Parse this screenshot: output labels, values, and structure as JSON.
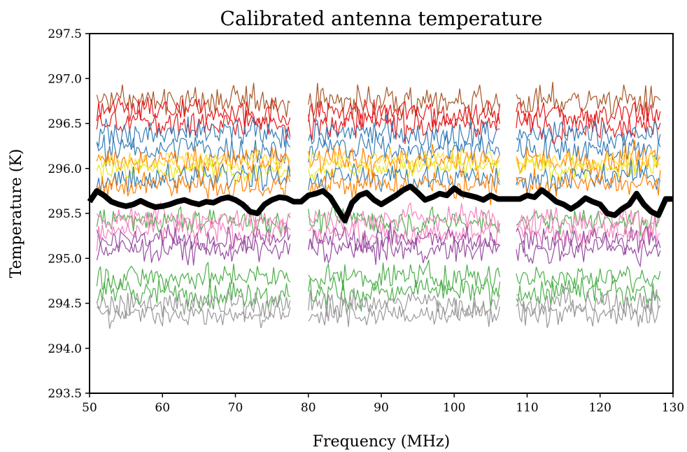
{
  "chart_data": {
    "type": "line",
    "title": "Calibrated antenna temperature",
    "xlabel": "Frequency (MHz)",
    "ylabel": "Temperature (K)",
    "xlim": [
      50,
      130
    ],
    "ylim": [
      293.5,
      297.5
    ],
    "xticks": [
      50,
      60,
      70,
      80,
      90,
      100,
      110,
      120,
      130
    ],
    "yticks": [
      293.5,
      294.0,
      294.5,
      295.0,
      295.5,
      296.0,
      296.5,
      297.0,
      297.5
    ],
    "xtick_labels": [
      "50",
      "60",
      "70",
      "80",
      "90",
      "100",
      "110",
      "120",
      "130"
    ],
    "ytick_labels": [
      "293.5",
      "294.0",
      "294.5",
      "295.0",
      "295.5",
      "296.0",
      "296.5",
      "297.0",
      "297.5"
    ],
    "grid": false,
    "legend": "none",
    "segments": [
      [
        51,
        77.5
      ],
      [
        80,
        106.3
      ],
      [
        108.5,
        128.3
      ]
    ],
    "series": [
      {
        "color": "#a65628",
        "level": 296.75,
        "noise": 0.17
      },
      {
        "color": "#e41a1c",
        "level": 296.62,
        "noise": 0.16
      },
      {
        "color": "#e41a1c",
        "level": 296.5,
        "noise": 0.16
      },
      {
        "color": "#377eb8",
        "level": 296.38,
        "noise": 0.16
      },
      {
        "color": "#377eb8",
        "level": 296.22,
        "noise": 0.16
      },
      {
        "color": "#ff7f00",
        "level": 296.08,
        "noise": 0.16
      },
      {
        "color": "#ffd92f",
        "level": 296.1,
        "noise": 0.12
      },
      {
        "color": "#e6e61a",
        "level": 296.0,
        "noise": 0.12
      },
      {
        "color": "#377eb8",
        "level": 295.9,
        "noise": 0.15
      },
      {
        "color": "#ff7f00",
        "level": 295.82,
        "noise": 0.15
      },
      {
        "color": "#4daf4a",
        "level": 295.42,
        "noise": 0.14
      },
      {
        "color": "#f781bf",
        "level": 295.45,
        "noise": 0.15
      },
      {
        "color": "#f781bf",
        "level": 295.28,
        "noise": 0.15
      },
      {
        "color": "#984ea3",
        "level": 295.22,
        "noise": 0.15
      },
      {
        "color": "#984ea3",
        "level": 295.1,
        "noise": 0.14
      },
      {
        "color": "#4daf4a",
        "level": 294.8,
        "noise": 0.15
      },
      {
        "color": "#4daf4a",
        "level": 294.62,
        "noise": 0.15
      },
      {
        "color": "#999999",
        "level": 294.5,
        "noise": 0.15
      },
      {
        "color": "#999999",
        "level": 294.38,
        "noise": 0.14
      }
    ],
    "mean_series": {
      "color": "#000000",
      "x": [
        50,
        51,
        52,
        53,
        54,
        55,
        56,
        57,
        58,
        59,
        60,
        61,
        62,
        63,
        64,
        65,
        66,
        67,
        68,
        69,
        70,
        71,
        72,
        73,
        74,
        75,
        76,
        77,
        78,
        79,
        80,
        81,
        82,
        83,
        84,
        85,
        86,
        87,
        88,
        89,
        90,
        91,
        92,
        93,
        94,
        95,
        96,
        97,
        98,
        99,
        100,
        101,
        102,
        103,
        104,
        105,
        106,
        107,
        108,
        109,
        110,
        111,
        112,
        113,
        114,
        115,
        116,
        117,
        118,
        119,
        120,
        121,
        122,
        123,
        124,
        125,
        126,
        127,
        128,
        129,
        130
      ],
      "y": [
        295.63,
        295.75,
        295.7,
        295.63,
        295.6,
        295.58,
        295.6,
        295.64,
        295.6,
        295.57,
        295.58,
        295.6,
        295.63,
        295.65,
        295.62,
        295.6,
        295.63,
        295.62,
        295.66,
        295.68,
        295.65,
        295.6,
        295.52,
        295.5,
        295.6,
        295.65,
        295.68,
        295.67,
        295.63,
        295.63,
        295.7,
        295.72,
        295.75,
        295.68,
        295.55,
        295.42,
        295.62,
        295.7,
        295.73,
        295.65,
        295.6,
        295.65,
        295.7,
        295.76,
        295.8,
        295.73,
        295.65,
        295.68,
        295.72,
        295.7,
        295.78,
        295.72,
        295.7,
        295.68,
        295.65,
        295.7,
        295.66,
        295.66,
        295.66,
        295.66,
        295.7,
        295.68,
        295.76,
        295.7,
        295.63,
        295.6,
        295.55,
        295.6,
        295.67,
        295.63,
        295.6,
        295.5,
        295.48,
        295.55,
        295.6,
        295.72,
        295.6,
        295.52,
        295.48,
        295.66,
        295.66
      ]
    }
  }
}
